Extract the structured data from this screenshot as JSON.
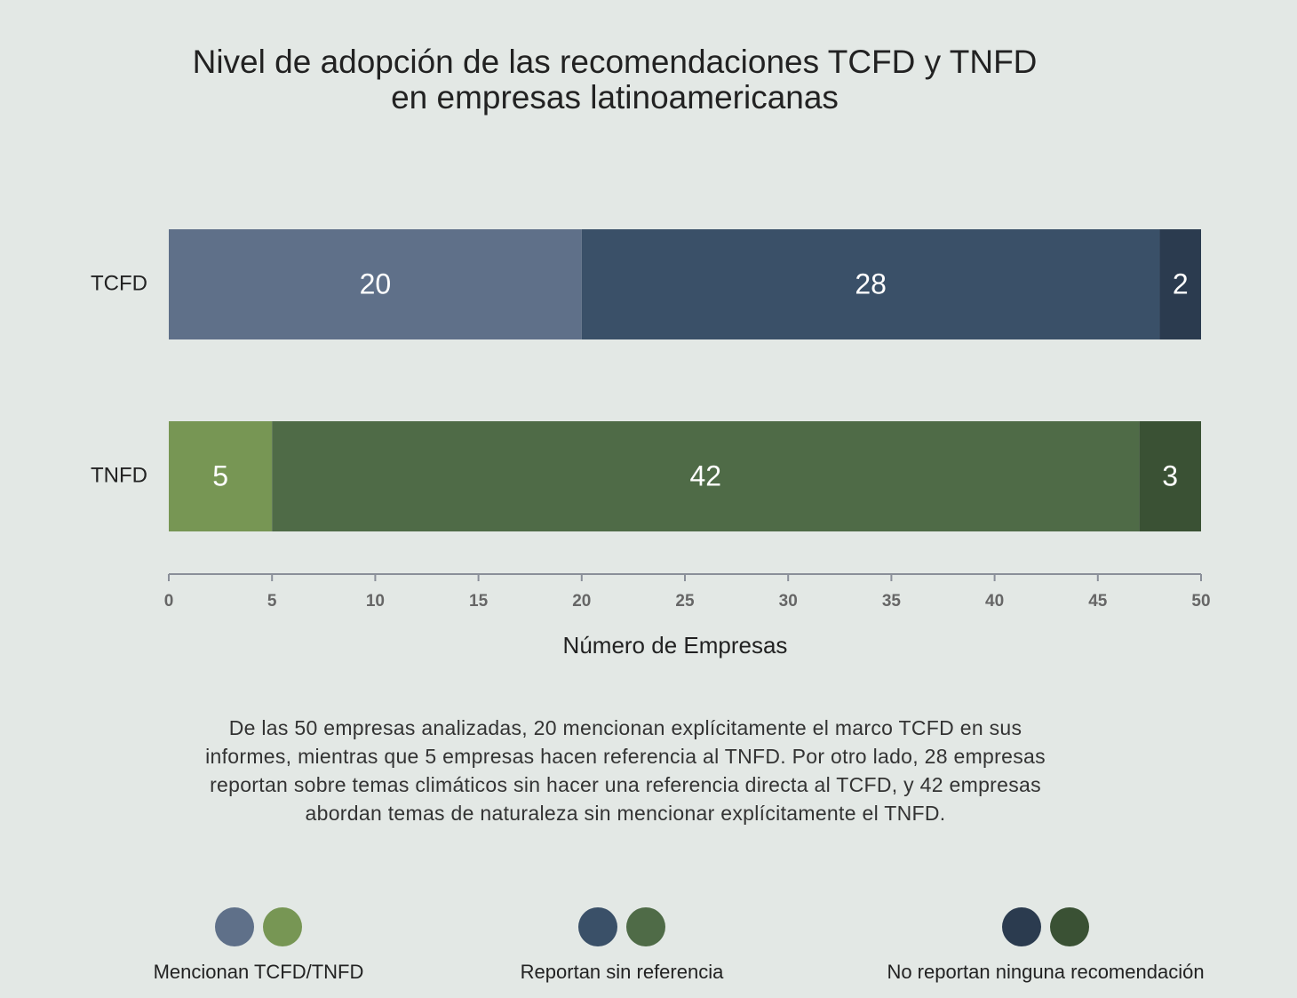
{
  "chart_data": {
    "type": "stacked_barh",
    "title": "Nivel de adopción de las recomendaciones TCFD y TNFD\nen empresas latinoamericanas",
    "categories": [
      "TCFD",
      "TNFD"
    ],
    "series": [
      {
        "name": "Mencionan TCFD/TNFD",
        "color": [
          "#5f7089",
          "#779654"
        ],
        "values": [
          20,
          5
        ]
      },
      {
        "name": "Reportan sin referencia",
        "color": [
          "#3a5068",
          "#4f6b47"
        ],
        "values": [
          28,
          42
        ]
      },
      {
        "name": "No reportan ninguna recomendación",
        "color": [
          "#2b3b4f",
          "#3a5134"
        ],
        "values": [
          2,
          3
        ]
      }
    ],
    "xlabel": "Número de Empresas",
    "xlim": [
      0,
      50
    ],
    "xticks": [
      0,
      5,
      10,
      15,
      20,
      25,
      30,
      35,
      40,
      45,
      50
    ],
    "grid": false,
    "legend": "bottom",
    "annotation": "De las 50 empresas analizadas, 20 mencionan explícitamente el marco TCFD en sus\ninformes, mientras que 5 empresas hacen referencia al TNFD. Por otro lado, 28 empresas\nreportan sobre temas climáticos sin hacer una referencia directa al TCFD, y 42 empresas\nabordan temas de naturaleza sin mencionar explícitamente el TNFD."
  }
}
